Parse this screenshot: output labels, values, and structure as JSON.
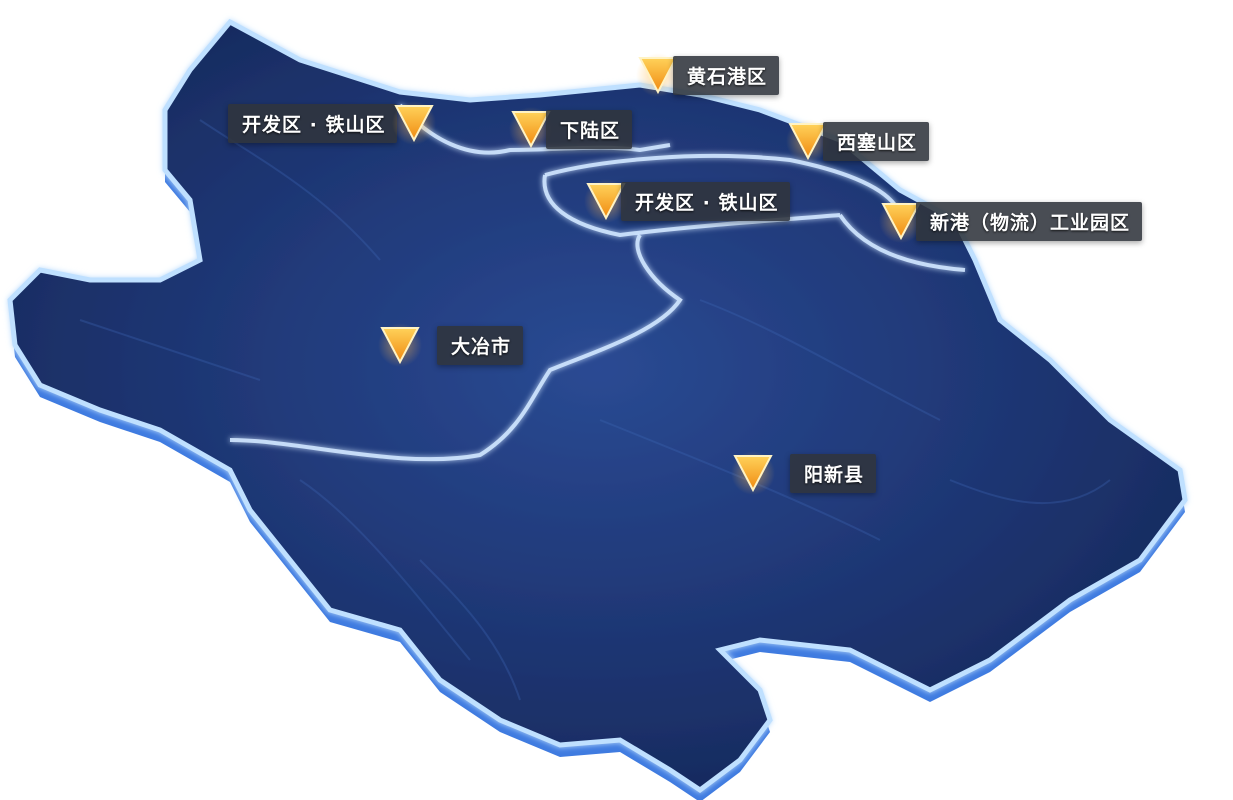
{
  "colors": {
    "land": "#1d3470",
    "land_dark": "#122450",
    "border_glow": "#9cc8ff",
    "edge": "#4f86e6",
    "marker_orange": "#f39a1c",
    "label_bg": "#30343c"
  },
  "icons": {
    "marker": "location-triangle-icon"
  },
  "markers": [
    {
      "id": "kfq-tsq-west",
      "label": "开发区 · 铁山区"
    },
    {
      "id": "xialu",
      "label": "下陆区"
    },
    {
      "id": "huangshigang",
      "label": "黄石港区"
    },
    {
      "id": "xisaishan",
      "label": "西塞山区"
    },
    {
      "id": "kfq-tsq-center",
      "label": "开发区 · 铁山区"
    },
    {
      "id": "xingang",
      "label": "新港（物流）工业园区"
    },
    {
      "id": "daye",
      "label": "大冶市"
    },
    {
      "id": "yangxin",
      "label": "阳新县"
    }
  ]
}
